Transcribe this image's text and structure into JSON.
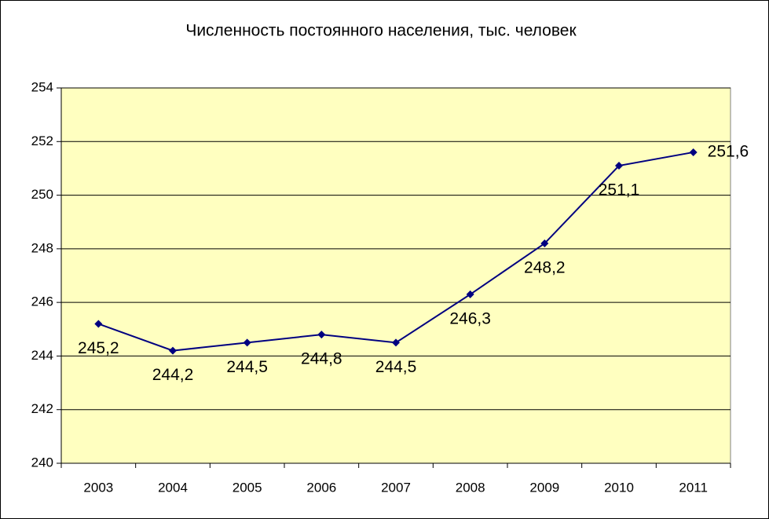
{
  "chart_data": {
    "type": "line",
    "title": "Численность постоянного населения,  тыс. человек",
    "categories": [
      "2003",
      "2004",
      "2005",
      "2006",
      "2007",
      "2008",
      "2009",
      "2010",
      "2011"
    ],
    "values": [
      245.2,
      244.2,
      244.5,
      244.8,
      244.5,
      246.3,
      248.2,
      251.1,
      251.6
    ],
    "value_labels": [
      "245,2",
      "244,2",
      "244,5",
      "244,8",
      "244,5",
      "246,3",
      "248,2",
      "251,1",
      "251,6"
    ],
    "color": "#000080",
    "plot_background": "#ffffc0",
    "ylim": [
      240,
      254
    ],
    "yticks": [
      240,
      242,
      244,
      246,
      248,
      250,
      252,
      254
    ],
    "grid": true
  }
}
